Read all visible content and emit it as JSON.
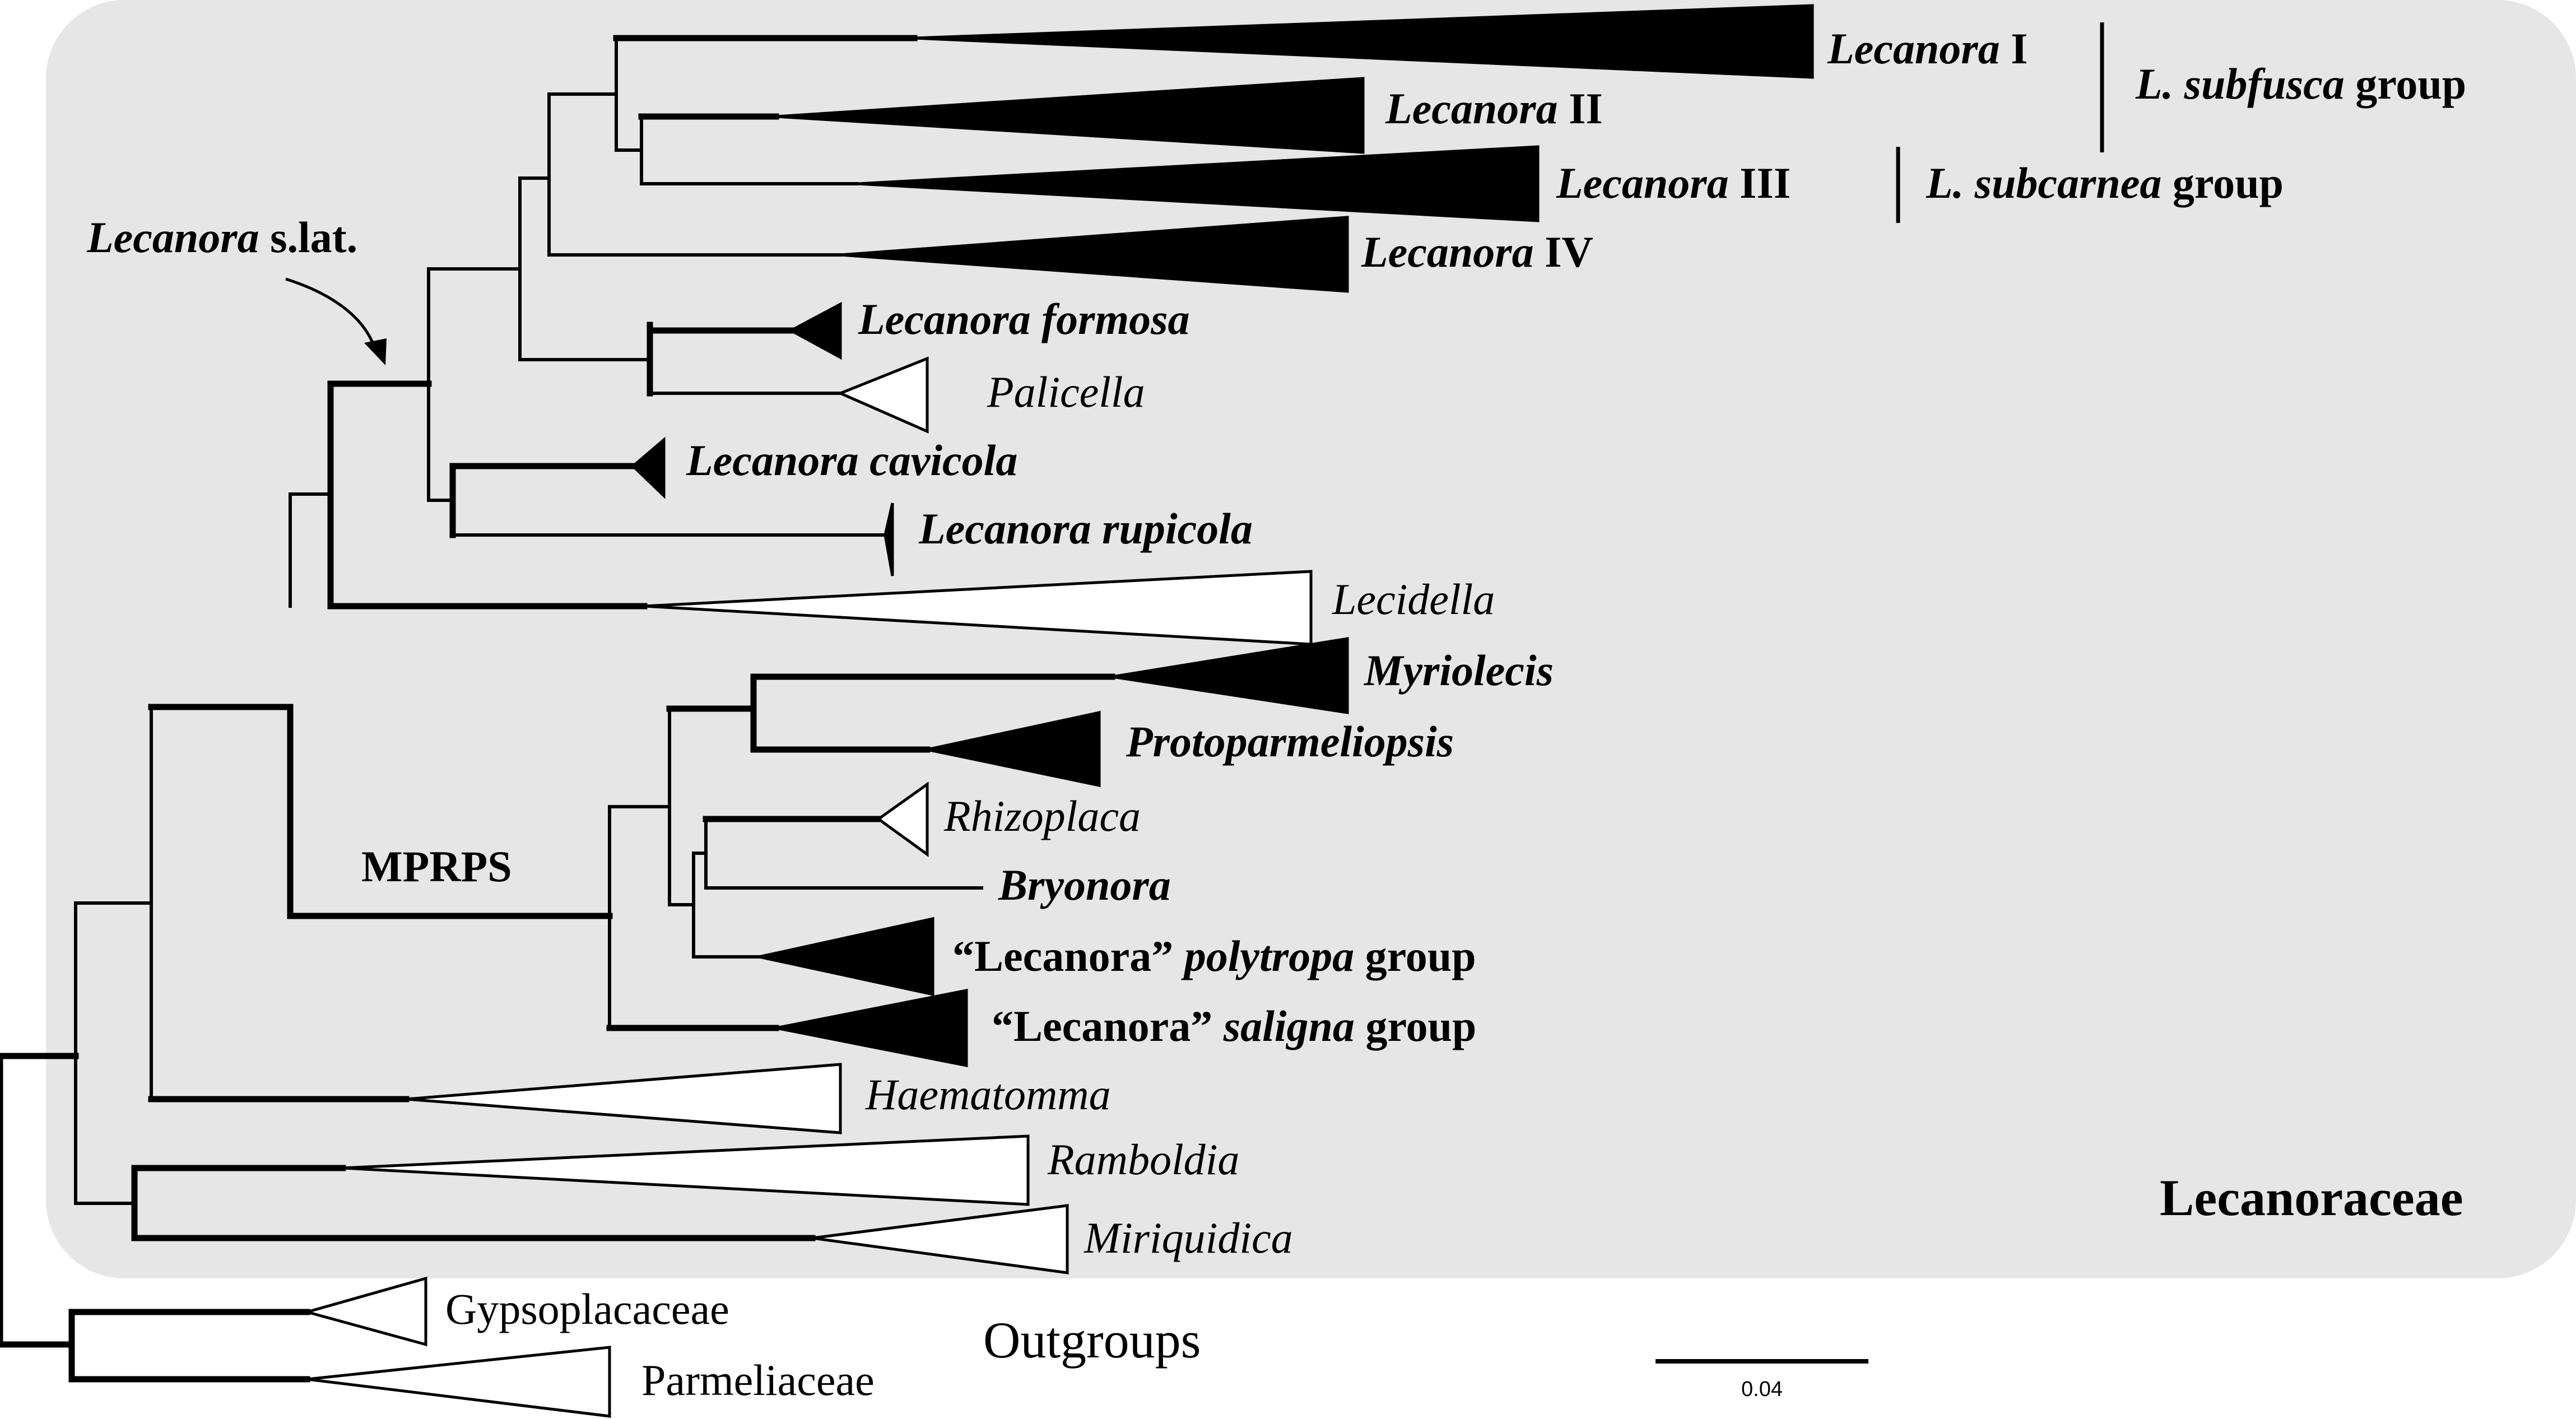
{
  "family_box_label": "Lecanoraceae",
  "clades": {
    "lecanora_1": {
      "genus": "Lecanora",
      "suffix": " I"
    },
    "lecanora_2": {
      "genus": "Lecanora",
      "suffix": " II"
    },
    "lecanora_3": {
      "genus": "Lecanora",
      "suffix": " III"
    },
    "lecanora_4": {
      "genus": "Lecanora",
      "suffix": " IV"
    },
    "lecanora_formosa": "Lecanora formosa",
    "palicella": "Palicella",
    "lecanora_cavicola": "Lecanora cavicola",
    "lecanora_rupicola": "Lecanora rupicola",
    "lecidella": "Lecidella",
    "myriolecis": "Myriolecis",
    "protoparmeliopsis": "Protoparmeliopsis",
    "rhizoplaca": "Rhizoplaca",
    "bryonora": "Bryonora",
    "polytropa": {
      "quoted": "“Lecanora”",
      "epithet": " polytropa",
      "suffix": " group"
    },
    "saligna": {
      "quoted": "“Lecanora”",
      "epithet": " saligna",
      "suffix": " group"
    },
    "haematomma": "Haematomma",
    "ramboldia": "Ramboldia",
    "miriquidica": "Miriquidica",
    "gypsoplacaceae": "Gypsoplacaceae",
    "parmeliaceae": "Parmeliaceae"
  },
  "groups": {
    "subfusca": {
      "species": "L. subfusca",
      "suffix": " group"
    },
    "subcarnea": {
      "species": "L. subcarnea",
      "suffix": " group"
    }
  },
  "node_labels": {
    "lecanora_slat": {
      "genus": "Lecanora",
      "suffix": " s.lat."
    },
    "mprps": "MPRPS"
  },
  "outgroups_label": "Outgroups",
  "scale_bar": {
    "value": 0.04,
    "label": "0.04"
  }
}
